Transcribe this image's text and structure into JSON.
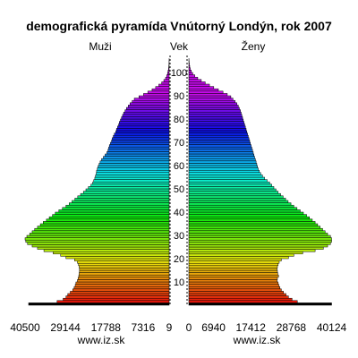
{
  "chart_data": {
    "type": "population-pyramid",
    "title": "demografická pyramída Vnútorný Londýn, rok 2007",
    "left_label": "Muži",
    "center_label": "Vek",
    "right_label": "Ženy",
    "left_ticks": [
      "40500",
      "29144",
      "17788",
      "7316",
      "9"
    ],
    "left_tick_values": [
      40500,
      29144,
      17788,
      7316,
      9
    ],
    "right_ticks": [
      "0",
      "6940",
      "17412",
      "28768",
      "40124"
    ],
    "right_tick_values": [
      0,
      6940,
      17412,
      28768,
      40124
    ],
    "age_ticks": [
      "10",
      "20",
      "30",
      "40",
      "50",
      "60",
      "70",
      "80",
      "90",
      "100"
    ],
    "age_range": [
      0,
      105
    ],
    "max_value": 40500,
    "watermark_left": "www.iz.sk",
    "watermark_right": "www.iz.sk",
    "series": [
      {
        "name": "Muži",
        "values": [
          39500,
          31500,
          29800,
          29000,
          28500,
          27800,
          27100,
          26700,
          26400,
          26200,
          25800,
          25600,
          25400,
          25300,
          25200,
          25200,
          25300,
          25500,
          25800,
          26600,
          29000,
          30500,
          32600,
          35200,
          37000,
          38500,
          39800,
          40300,
          40500,
          40000,
          39200,
          38500,
          37800,
          37000,
          36200,
          35400,
          34500,
          33700,
          32800,
          32000,
          31000,
          30000,
          29000,
          28100,
          27300,
          26500,
          25700,
          24900,
          24100,
          23400,
          22700,
          22000,
          21500,
          21200,
          20900,
          20700,
          20500,
          20400,
          20200,
          20000,
          19700,
          19400,
          19000,
          18500,
          18000,
          17500,
          17200,
          17000,
          16800,
          16500,
          16200,
          16000,
          15700,
          15400,
          15000,
          14800,
          14500,
          14200,
          14000,
          13700,
          13400,
          13100,
          12800,
          12400,
          12000,
          11500,
          11000,
          10400,
          9800,
          8500,
          7200,
          6000,
          4800,
          3800,
          2900,
          2100,
          1500,
          1000,
          700,
          450,
          300,
          180,
          100,
          60,
          30,
          15
        ]
      },
      {
        "name": "Ženy",
        "values": [
          40124,
          30500,
          29000,
          28000,
          27300,
          26600,
          26000,
          25600,
          25300,
          25100,
          24800,
          24900,
          25200,
          25000,
          24900,
          24800,
          24900,
          25100,
          25400,
          26000,
          28000,
          29500,
          32000,
          35500,
          37800,
          39000,
          39800,
          40124,
          40124,
          39800,
          39000,
          38300,
          37600,
          36900,
          36200,
          35500,
          34700,
          33900,
          33100,
          32200,
          31300,
          30400,
          29500,
          28700,
          27900,
          27200,
          26500,
          25800,
          25100,
          24500,
          23900,
          23300,
          22700,
          22000,
          21300,
          20700,
          20200,
          19800,
          19500,
          19300,
          19100,
          18900,
          18700,
          18500,
          18300,
          18100,
          17900,
          17700,
          17500,
          17300,
          17100,
          16900,
          16700,
          16500,
          16300,
          16100,
          15900,
          15700,
          15500,
          15300,
          15100,
          14900,
          14700,
          14500,
          14200,
          13900,
          13500,
          13000,
          12400,
          11800,
          10800,
          9600,
          8300,
          7000,
          5800,
          4600,
          3500,
          2500,
          1700,
          1100,
          700,
          400,
          250,
          150,
          80,
          40
        ]
      }
    ]
  }
}
